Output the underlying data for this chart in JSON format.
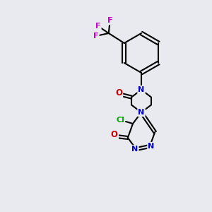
{
  "bg_color": "#e8eaf0",
  "bond_color": "#000000",
  "bond_width": 1.5,
  "atom_colors": {
    "N": "#0000cc",
    "O": "#cc0000",
    "Cl": "#00aa00",
    "F": "#cc00cc",
    "C": "#000000"
  },
  "font_size_atoms": 7.5,
  "font_size_F": 7.5
}
